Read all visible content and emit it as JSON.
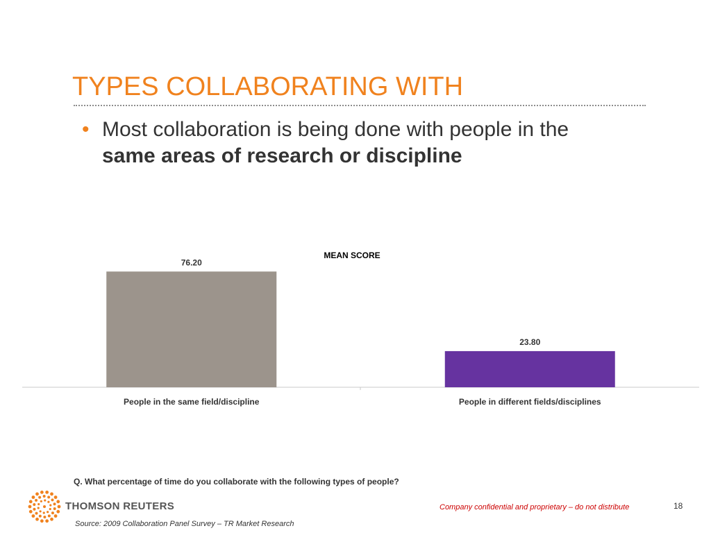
{
  "slide": {
    "title": "TYPES COLLABORATING WITH",
    "bullet_marker": "•",
    "bullet_line1": "Most collaboration is being done with people in the",
    "bullet_line2_bold": "same areas of research or discipline"
  },
  "chart_data": {
    "type": "bar",
    "title": "MEAN SCORE",
    "categories": [
      "People in the same field/discipline",
      "People in different fields/disciplines"
    ],
    "values": [
      76.2,
      23.8
    ],
    "value_labels": [
      "76.20",
      "23.80"
    ],
    "colors": [
      "#9C948C",
      "#6633A0"
    ],
    "ylim": [
      0,
      85
    ],
    "grid": false,
    "legend": "none"
  },
  "footer": {
    "question": "Q. What percentage of time do you collaborate with the following types of people?",
    "logo_text": "THOMSON REUTERS",
    "confidential": "Company confidential and proprietary – do not distribute",
    "page_number": "18",
    "source": "Source:  2009 Collaboration Panel Survey – TR Market Research"
  },
  "colors": {
    "accent": "#F0821E",
    "confidential": "#CC0000"
  }
}
